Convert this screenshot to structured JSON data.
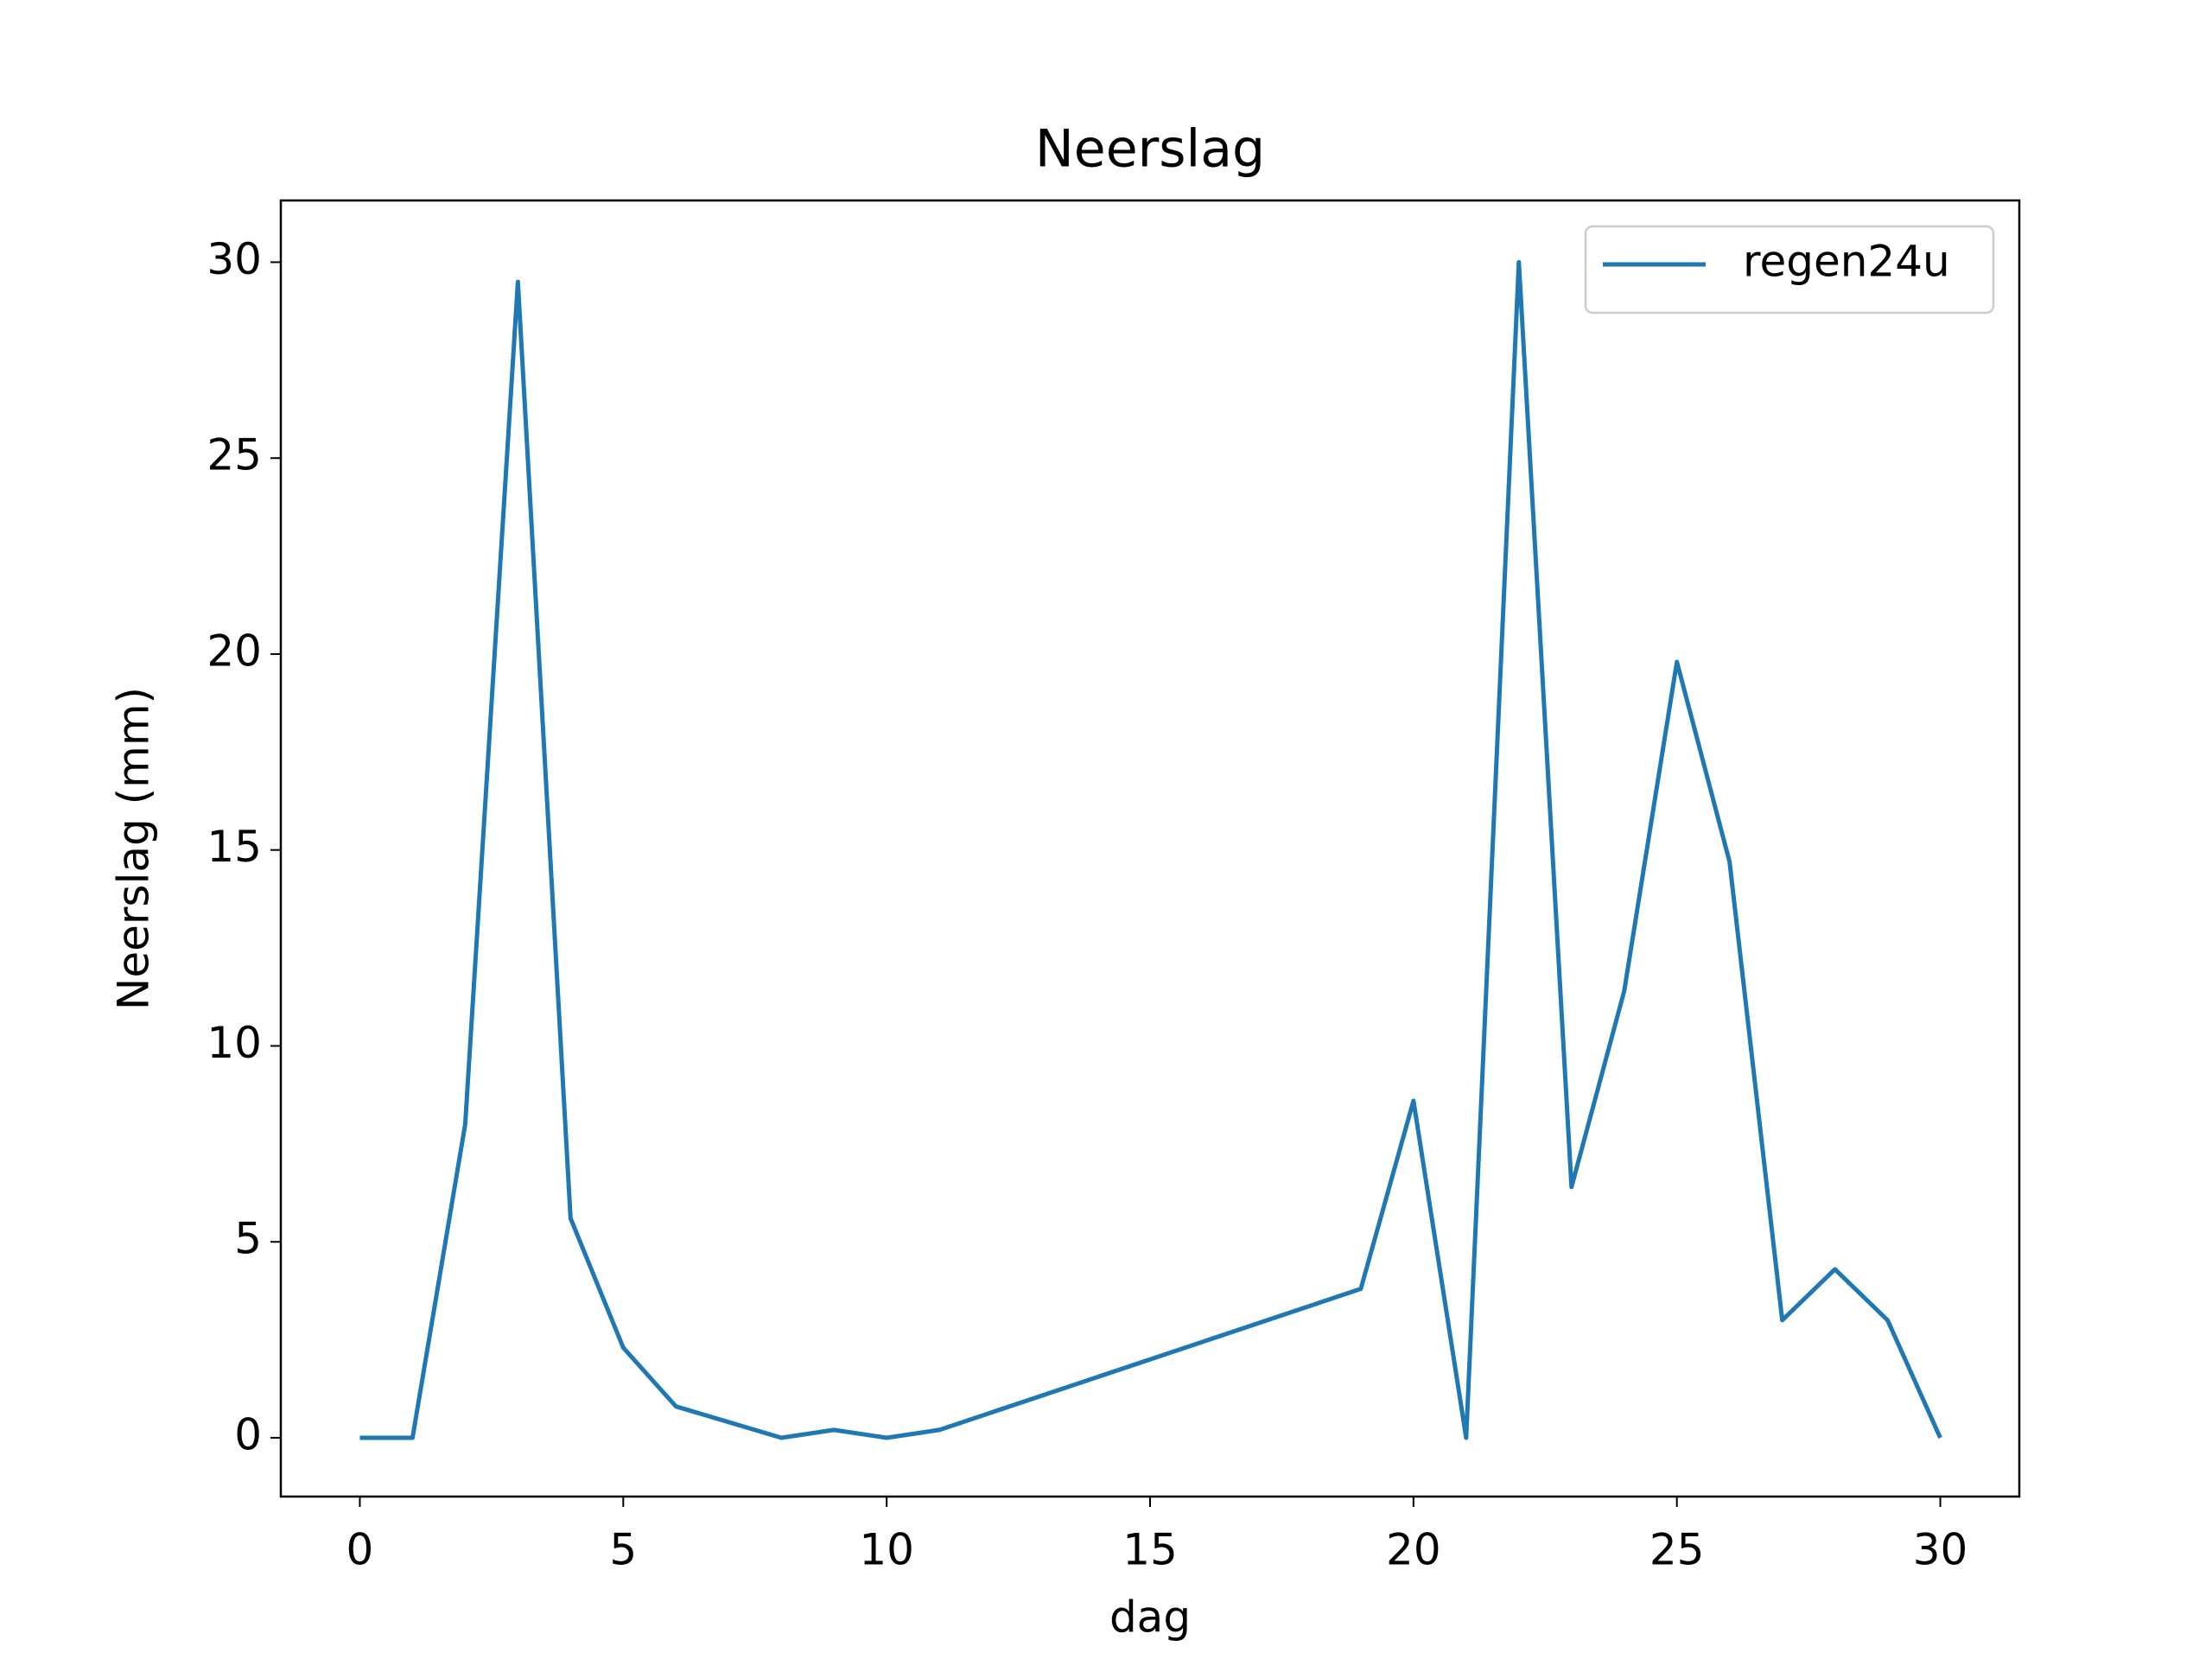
{
  "chart_data": {
    "type": "line",
    "title": "Neerslag",
    "xlabel": "dag",
    "ylabel": "Neerslag (mm)",
    "x": [
      0,
      1,
      2,
      3,
      4,
      5,
      6,
      8,
      9,
      10,
      11,
      19,
      20,
      21,
      22,
      23,
      24,
      25,
      26,
      27,
      28,
      29,
      30
    ],
    "series": [
      {
        "name": "regen24u",
        "color": "#1f77b4",
        "values": [
          0,
          0,
          8,
          29.5,
          5.6,
          2.3,
          0.8,
          0,
          0.2,
          0,
          0.2,
          3.8,
          8.6,
          0,
          30,
          6.4,
          11.4,
          19.8,
          14.7,
          3.0,
          4.3,
          3.0,
          0
        ]
      }
    ],
    "xlim": [
      -1.5,
      31.5
    ],
    "ylim": [
      -1.5,
      31.575
    ],
    "xticks": [
      0,
      5,
      10,
      15,
      20,
      25,
      30
    ],
    "yticks": [
      0,
      5,
      10,
      15,
      20,
      25,
      30
    ],
    "grid": false,
    "legend": "upper right"
  }
}
